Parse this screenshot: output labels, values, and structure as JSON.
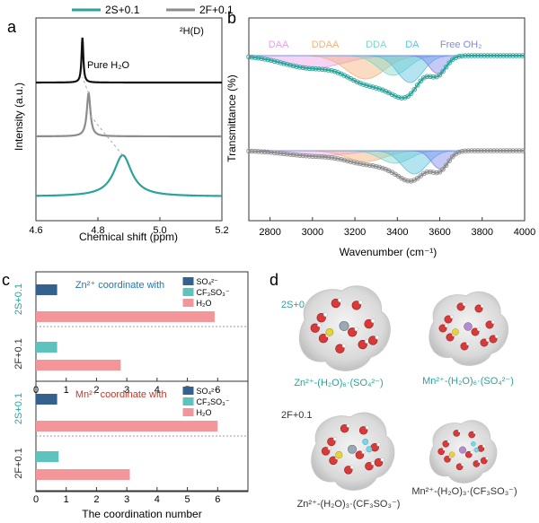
{
  "legend": {
    "items": [
      {
        "name": "2S+0.1",
        "color": "#2aa39b"
      },
      {
        "name": "2F+0.1",
        "color": "#8c8c8c"
      }
    ]
  },
  "panels": {
    "a": {
      "letter": "a",
      "isotope": "²H(D)",
      "pure_label": "Pure H₂O"
    },
    "b": {
      "letter": "b",
      "bands": [
        "DAA",
        "DDAA",
        "DDA",
        "DA",
        "Free OH₂"
      ],
      "band_colors": [
        "#e8a0e8",
        "#f7b27a",
        "#7fd6c8",
        "#5bc4e0",
        "#7f88e8"
      ]
    },
    "c": {
      "letter": "c"
    },
    "d": {
      "letter": "d",
      "group1": "2S+0.1",
      "group2": "2F+0.1",
      "captions": [
        "Zn²⁺-(H₂O)₆·(SO₄²⁻)",
        "Mn²⁺-(H₂O)₆·(SO₄²⁻)",
        "Zn²⁺-(H₂O)₃·(CF₃SO₃⁻)",
        "Mn²⁺-(H₂O)₃·(CF₃SO₃⁻)"
      ]
    }
  },
  "chart_data": [
    {
      "panel": "a",
      "type": "line",
      "xlabel": "Chemical shift (ppm)",
      "ylabel": "Intensity (a.u.)",
      "xlim": [
        4.6,
        5.2
      ],
      "xticks": [
        "4.6",
        "4.8",
        "5.0",
        "5.2"
      ],
      "series": [
        {
          "name": "Pure H₂O",
          "peak_ppm": 4.75,
          "color": "#111111"
        },
        {
          "name": "2F+0.1",
          "peak_ppm": 4.77,
          "color": "#8c8c8c"
        },
        {
          "name": "2S+0.1",
          "peak_ppm": 4.88,
          "color": "#2aa39b"
        }
      ]
    },
    {
      "panel": "b",
      "type": "line",
      "xlabel": "Wavenumber (cm⁻¹)",
      "ylabel": "Transmittance (%)",
      "xlim": [
        2700,
        4000
      ],
      "xticks": [
        "2800",
        "3000",
        "3200",
        "3400",
        "3600",
        "3800",
        "4000"
      ],
      "series": [
        {
          "name": "2S+0.1",
          "color": "#2aa39b",
          "band_centers": [
            3000,
            3250,
            3380,
            3460,
            3590
          ]
        },
        {
          "name": "2F+0.1",
          "color": "#8c8c8c",
          "band_centers": [
            3020,
            3250,
            3390,
            3480,
            3600
          ]
        }
      ]
    },
    {
      "panel": "c",
      "type": "bar",
      "xlabel": "The coordination number",
      "xlim": [
        0,
        7
      ],
      "xticks": [
        "0",
        "1",
        "2",
        "3",
        "4",
        "5",
        "6"
      ],
      "legend_entries": [
        "SO₄²⁻",
        "CF₃SO₃⁻",
        "H₂O"
      ],
      "colors": {
        "SO4": "#35618f",
        "CF3SO3": "#5cc3bd",
        "H2O": "#f4959a"
      },
      "subplots": [
        {
          "title": "Zn²⁺ coordinate with",
          "title_color": "#1f77b4",
          "categories": [
            "2S+0.1",
            "2F+0.1"
          ],
          "series": [
            {
              "name": "SO₄²⁻",
              "values": [
                0.7,
                0
              ]
            },
            {
              "name": "CF₃SO₃⁻",
              "values": [
                0,
                0.7
              ]
            },
            {
              "name": "H₂O",
              "values": [
                5.9,
                2.8
              ]
            }
          ]
        },
        {
          "title": "Mn²⁺ coordinate with",
          "title_color": "#c0392b",
          "categories": [
            "2S+0.1",
            "2F+0.1"
          ],
          "series": [
            {
              "name": "SO₄²⁻",
              "values": [
                0.7,
                0
              ]
            },
            {
              "name": "CF₃SO₃⁻",
              "values": [
                0,
                0.75
              ]
            },
            {
              "name": "H₂O",
              "values": [
                6.0,
                3.1
              ]
            }
          ]
        }
      ]
    }
  ]
}
